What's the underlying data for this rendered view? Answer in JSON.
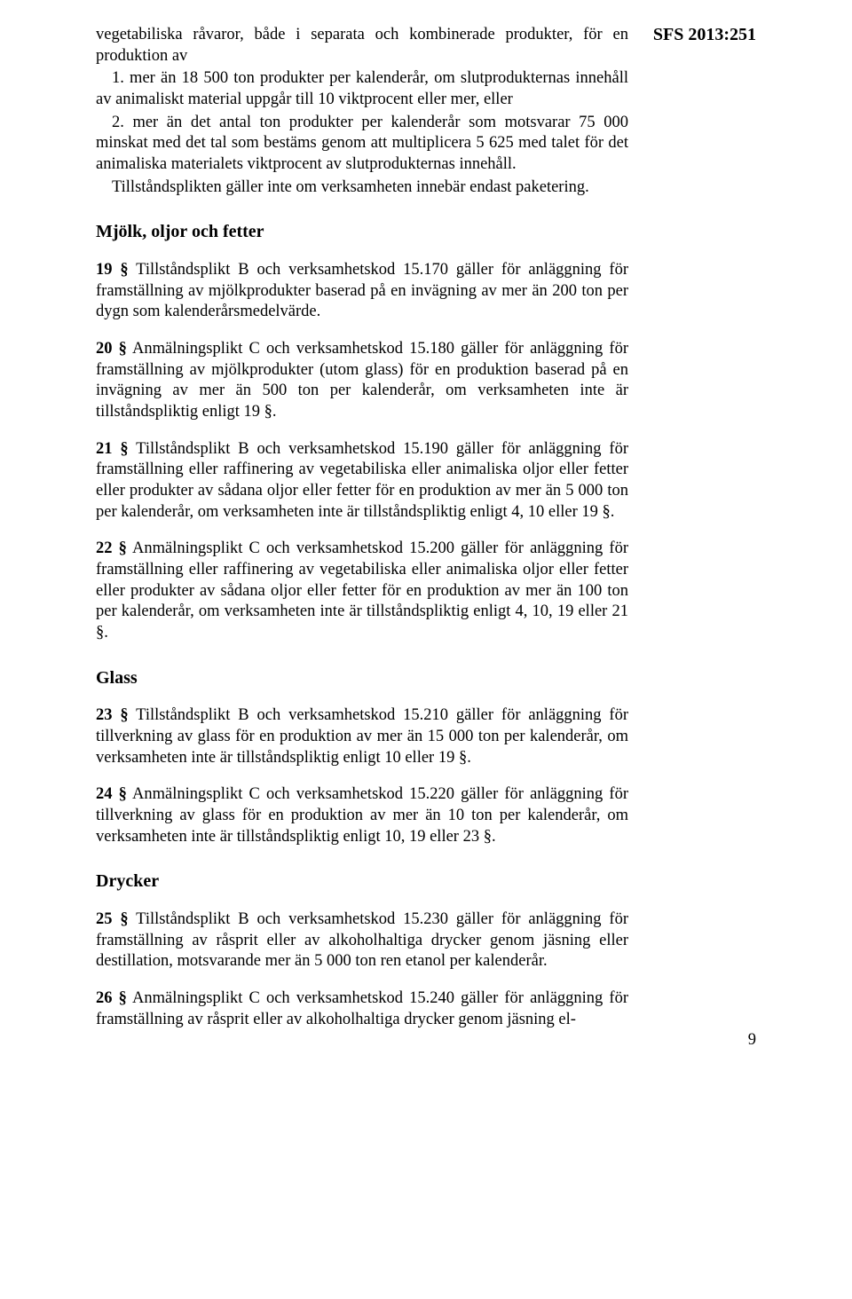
{
  "header": {
    "ref": "SFS 2013:251"
  },
  "intro": {
    "p1": "vegetabiliska råvaror, både i separata och kombinerade produkter, för en produktion av",
    "item1": "1. mer än 18 500 ton produkter per kalenderår, om slutprodukternas innehåll av animaliskt material uppgår till 10 viktprocent eller mer, eller",
    "item2": "2. mer än det antal ton produkter per kalenderår som motsvarar 75 000 minskat med det tal som bestäms genom att multiplicera 5 625 med talet för det animaliska materialets viktprocent av slutprodukternas innehåll.",
    "tail": "Tillståndsplikten gäller inte om verksamheten innebär endast paketering."
  },
  "sections": {
    "mjolk": {
      "heading": "Mjölk, oljor och fetter",
      "e19": {
        "lead": "19 §",
        "text": "   Tillståndsplikt B och verksamhetskod 15.170 gäller för anläggning för framställning av mjölkprodukter baserad på en invägning av mer än 200 ton per dygn som kalenderårsmedelvärde."
      },
      "e20": {
        "lead": "20 §",
        "text": "   Anmälningsplikt C och verksamhetskod 15.180 gäller för anläggning för framställning av mjölkprodukter (utom glass) för en produktion baserad på en invägning av mer än 500 ton per kalenderår, om verksamheten inte är tillståndspliktig enligt 19 §."
      },
      "e21": {
        "lead": "21 §",
        "text": "   Tillståndsplikt B och verksamhetskod 15.190 gäller för anläggning för framställning eller raffinering av vegetabiliska eller animaliska oljor eller fetter eller produkter av sådana oljor eller fetter för en produktion av mer än 5 000 ton per kalenderår, om verksamheten inte är tillståndspliktig enligt 4, 10 eller 19 §."
      },
      "e22": {
        "lead": "22 §",
        "text": "   Anmälningsplikt C och verksamhetskod 15.200 gäller för anläggning för framställning eller raffinering av vegetabiliska eller animaliska oljor eller fetter eller produkter av sådana oljor eller fetter för en produktion av mer än 100 ton per kalenderår, om verksamheten inte är tillståndspliktig enligt 4, 10, 19 eller 21 §."
      }
    },
    "glass": {
      "heading": "Glass",
      "e23": {
        "lead": "23 §",
        "text": "   Tillståndsplikt B och verksamhetskod 15.210 gäller för anläggning för tillverkning av glass för en produktion av mer än 15 000 ton per kalenderår, om verksamheten inte är tillståndspliktig enligt 10 eller 19 §."
      },
      "e24": {
        "lead": "24 §",
        "text": "   Anmälningsplikt C och verksamhetskod 15.220 gäller för anläggning för tillverkning av glass för en produktion av mer än 10 ton per kalenderår, om verksamheten inte är tillståndspliktig enligt 10, 19 eller 23 §."
      }
    },
    "drycker": {
      "heading": "Drycker",
      "e25": {
        "lead": "25 §",
        "text": "   Tillståndsplikt B och verksamhetskod 15.230 gäller för anläggning för framställning av råsprit eller av alkoholhaltiga drycker genom jäsning eller destillation, motsvarande mer än 5 000 ton ren etanol per kalenderår."
      },
      "e26": {
        "lead": "26 §",
        "text": "   Anmälningsplikt C och verksamhetskod 15.240 gäller för anläggning för framställning av råsprit eller av alkoholhaltiga drycker genom jäsning el-"
      }
    }
  },
  "pageNumber": "9"
}
